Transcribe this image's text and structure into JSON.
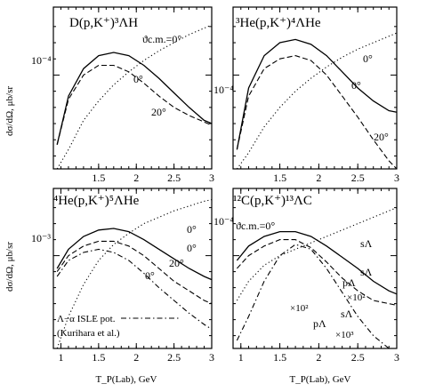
{
  "figure": {
    "ylabel": "dσ/dΩ, μb/sr",
    "xlabel": "T_P(Lab), GeV"
  },
  "chart_data": [
    {
      "id": "p1",
      "type": "line",
      "title": "D(p,K⁺)³ΛH",
      "xlim": [
        0.9,
        3.0
      ],
      "ylog": true,
      "xticks": [
        1.5,
        2.0,
        2.5,
        3.0
      ],
      "xticklabels": [
        "1.5",
        "2",
        "2.5",
        "3"
      ],
      "ytick_label": "10⁻⁴",
      "annotations": [
        "ϑc.m.=0°",
        "0°",
        "20°"
      ],
      "series": [
        {
          "style": "solid",
          "x": [
            0.95,
            1.1,
            1.3,
            1.5,
            1.7,
            1.9,
            2.1,
            2.3,
            2.5,
            2.7,
            2.9,
            3.0
          ],
          "y": [
            0.15,
            0.45,
            0.62,
            0.7,
            0.72,
            0.7,
            0.64,
            0.56,
            0.47,
            0.38,
            0.3,
            0.28
          ]
        },
        {
          "style": "dashed",
          "x": [
            0.95,
            1.1,
            1.3,
            1.5,
            1.7,
            1.9,
            2.1,
            2.3,
            2.5,
            2.7,
            2.9,
            3.0
          ],
          "y": [
            0.15,
            0.43,
            0.58,
            0.64,
            0.64,
            0.6,
            0.53,
            0.45,
            0.38,
            0.33,
            0.29,
            0.27
          ]
        },
        {
          "style": "dotted",
          "x": [
            0.95,
            1.1,
            1.3,
            1.5,
            1.7,
            1.9,
            2.1,
            2.3,
            2.5,
            2.7,
            2.9,
            3.0
          ],
          "y": [
            0.0,
            0.12,
            0.3,
            0.42,
            0.52,
            0.6,
            0.67,
            0.73,
            0.78,
            0.83,
            0.87,
            0.89
          ]
        }
      ]
    },
    {
      "id": "p2",
      "type": "line",
      "title": "³He(p,K⁺)⁴ΛHe",
      "xlim": [
        0.9,
        3.0
      ],
      "ylog": true,
      "xticks": [
        1.5,
        2.0,
        2.5,
        3.0
      ],
      "xticklabels": [
        "1.5",
        "2",
        "2.5",
        "3"
      ],
      "ytick_label": "10⁻⁴",
      "annotations": [
        "0°",
        "0°",
        "20°"
      ],
      "series": [
        {
          "style": "solid",
          "x": [
            0.95,
            1.1,
            1.3,
            1.5,
            1.7,
            1.9,
            2.1,
            2.3,
            2.5,
            2.7,
            2.9,
            3.0
          ],
          "y": [
            0.12,
            0.5,
            0.7,
            0.78,
            0.8,
            0.77,
            0.7,
            0.6,
            0.5,
            0.42,
            0.36,
            0.35
          ]
        },
        {
          "style": "dashed",
          "x": [
            0.95,
            1.1,
            1.3,
            1.5,
            1.7,
            1.9,
            2.1,
            2.3,
            2.5,
            2.7,
            2.9,
            3.0
          ],
          "y": [
            0.12,
            0.45,
            0.62,
            0.68,
            0.7,
            0.67,
            0.58,
            0.45,
            0.32,
            0.18,
            0.05,
            0.0
          ]
        },
        {
          "style": "dotted",
          "x": [
            0.95,
            1.1,
            1.3,
            1.5,
            1.7,
            1.9,
            2.1,
            2.3,
            2.5,
            2.7,
            2.9,
            3.0
          ],
          "y": [
            0.0,
            0.1,
            0.26,
            0.38,
            0.48,
            0.56,
            0.63,
            0.69,
            0.74,
            0.78,
            0.82,
            0.84
          ]
        }
      ]
    },
    {
      "id": "p3",
      "type": "line",
      "title": "⁴He(p,K⁺)⁵ΛHe",
      "xlim": [
        0.9,
        3.0
      ],
      "ylog": true,
      "xticks": [
        1.0,
        1.5,
        2.0,
        2.5,
        3.0
      ],
      "xticklabels": [
        "1",
        "1.5",
        "2",
        "2.5",
        "3"
      ],
      "ytick_label": "10⁻³",
      "annotations": [
        "0°",
        "0°",
        "20°",
        "0°"
      ],
      "legend": {
        "label": "Λ−α ISLE pot.",
        "sublabel": "(Kurihara et al.)",
        "placement": "bottom-left"
      },
      "series": [
        {
          "style": "solid",
          "x": [
            0.95,
            1.1,
            1.3,
            1.5,
            1.7,
            1.9,
            2.1,
            2.3,
            2.5,
            2.7,
            2.9,
            3.0
          ],
          "y": [
            0.5,
            0.62,
            0.7,
            0.74,
            0.75,
            0.73,
            0.68,
            0.62,
            0.56,
            0.5,
            0.45,
            0.43
          ]
        },
        {
          "style": "dashed",
          "x": [
            0.95,
            1.1,
            1.3,
            1.5,
            1.7,
            1.9,
            2.1,
            2.3,
            2.5,
            2.7,
            2.9,
            3.0
          ],
          "y": [
            0.48,
            0.58,
            0.64,
            0.67,
            0.67,
            0.64,
            0.58,
            0.5,
            0.42,
            0.36,
            0.3,
            0.28
          ]
        },
        {
          "style": "dashdot",
          "x": [
            0.95,
            1.1,
            1.3,
            1.5,
            1.7,
            1.9,
            2.1,
            2.3,
            2.5,
            2.7,
            2.9,
            3.0
          ],
          "y": [
            0.45,
            0.55,
            0.6,
            0.62,
            0.6,
            0.55,
            0.47,
            0.38,
            0.3,
            0.22,
            0.15,
            0.12
          ]
        },
        {
          "style": "dotted",
          "x": [
            0.95,
            1.1,
            1.3,
            1.5,
            1.7,
            1.9,
            2.1,
            2.3,
            2.5,
            2.7,
            2.9,
            3.0
          ],
          "y": [
            0.0,
            0.2,
            0.4,
            0.55,
            0.65,
            0.72,
            0.78,
            0.82,
            0.86,
            0.89,
            0.92,
            0.93
          ]
        }
      ]
    },
    {
      "id": "p4",
      "type": "line",
      "title": "¹²C(p,K⁺)¹³ΛC",
      "xlim": [
        0.9,
        3.0
      ],
      "ylog": true,
      "xticks": [
        1.0,
        1.5,
        2.0,
        2.5,
        3.0
      ],
      "xticklabels": [
        "1",
        "1.5",
        "2",
        "2.5",
        "3"
      ],
      "ytick_label": "10⁻⁴",
      "annotations": [
        "ϑc.m.=0°",
        "sΛ",
        "sΛ",
        "pΛ",
        "×10²",
        "×10²",
        "sΛ",
        "pΛ",
        "×10³"
      ],
      "series": [
        {
          "style": "solid",
          "x": [
            0.95,
            1.1,
            1.3,
            1.5,
            1.7,
            1.9,
            2.1,
            2.3,
            2.5,
            2.7,
            2.9,
            3.0
          ],
          "y": [
            0.55,
            0.64,
            0.7,
            0.73,
            0.73,
            0.7,
            0.64,
            0.57,
            0.5,
            0.42,
            0.36,
            0.34
          ]
        },
        {
          "style": "dashed",
          "x": [
            0.95,
            1.1,
            1.3,
            1.5,
            1.7,
            1.9,
            2.1,
            2.3,
            2.5,
            2.7,
            2.9,
            3.0
          ],
          "y": [
            0.5,
            0.58,
            0.64,
            0.68,
            0.68,
            0.63,
            0.54,
            0.44,
            0.36,
            0.3,
            0.28,
            0.27
          ]
        },
        {
          "style": "dotted",
          "x": [
            0.95,
            1.1,
            1.3,
            1.5,
            1.7,
            1.9,
            2.1,
            2.3,
            2.5,
            2.7,
            2.9,
            3.0
          ],
          "y": [
            0.3,
            0.42,
            0.52,
            0.58,
            0.62,
            0.66,
            0.7,
            0.74,
            0.78,
            0.82,
            0.86,
            0.88
          ]
        },
        {
          "style": "dashdot",
          "x": [
            0.95,
            1.1,
            1.3,
            1.5,
            1.7,
            1.9,
            2.1,
            2.3,
            2.5,
            2.7,
            2.9,
            3.0
          ],
          "y": [
            0.05,
            0.2,
            0.42,
            0.58,
            0.65,
            0.62,
            0.5,
            0.35,
            0.2,
            0.08,
            0.0,
            0.0
          ]
        }
      ]
    }
  ]
}
